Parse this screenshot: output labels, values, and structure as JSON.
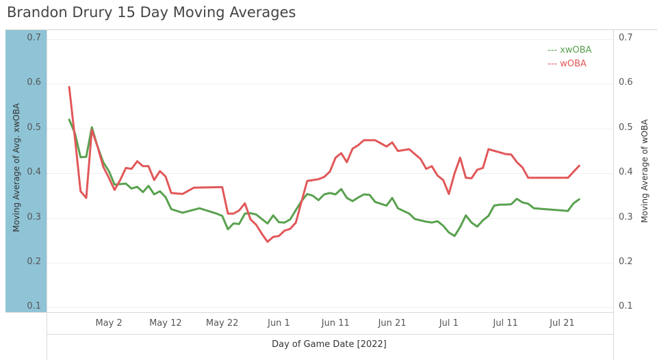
{
  "title": "Brandon Drury 15 Day Moving Averages",
  "chart_data": {
    "type": "line",
    "title": "Brandon Drury 15 Day Moving Averages",
    "xlabel": "Day of Game Date [2022]",
    "ylabel_left": "Moving Average of Avg. xwOBA",
    "ylabel_right": "Moving Average of wOBA",
    "ylim": [
      0.09,
      0.72
    ],
    "xlim": [
      "2022-04-21",
      "2022-07-30"
    ],
    "y_ticks": [
      "0.1",
      "0.2",
      "0.3",
      "0.4",
      "0.5",
      "0.6",
      "0.7"
    ],
    "x_ticks": [
      {
        "date": "2022-05-02",
        "label": "May 2"
      },
      {
        "date": "2022-05-12",
        "label": "May 12"
      },
      {
        "date": "2022-05-22",
        "label": "May 22"
      },
      {
        "date": "2022-06-01",
        "label": "Jun 1"
      },
      {
        "date": "2022-06-11",
        "label": "Jun 11"
      },
      {
        "date": "2022-06-21",
        "label": "Jun 21"
      },
      {
        "date": "2022-07-01",
        "label": "Jul 1"
      },
      {
        "date": "2022-07-11",
        "label": "Jul 11"
      },
      {
        "date": "2022-07-21",
        "label": "Jul 21"
      }
    ],
    "legend_position": "top-right",
    "grid": true,
    "series": [
      {
        "name": "xwOBA",
        "legend_label": "--- xwOBA",
        "color": "#59a14f",
        "points": [
          [
            "2022-04-25",
            0.52
          ],
          [
            "2022-04-26",
            0.49
          ],
          [
            "2022-04-27",
            0.436
          ],
          [
            "2022-04-28",
            0.437
          ],
          [
            "2022-04-29",
            0.503
          ],
          [
            "2022-04-30",
            0.46
          ],
          [
            "2022-05-01",
            0.425
          ],
          [
            "2022-05-02",
            0.405
          ],
          [
            "2022-05-03",
            0.375
          ],
          [
            "2022-05-04",
            0.376
          ],
          [
            "2022-05-05",
            0.377
          ],
          [
            "2022-05-06",
            0.366
          ],
          [
            "2022-05-07",
            0.37
          ],
          [
            "2022-05-08",
            0.358
          ],
          [
            "2022-05-09",
            0.372
          ],
          [
            "2022-05-10",
            0.353
          ],
          [
            "2022-05-11",
            0.36
          ],
          [
            "2022-05-12",
            0.347
          ],
          [
            "2022-05-13",
            0.32
          ],
          [
            "2022-05-15",
            0.312
          ],
          [
            "2022-05-18",
            0.322
          ],
          [
            "2022-05-21",
            0.31
          ],
          [
            "2022-05-22",
            0.305
          ],
          [
            "2022-05-23",
            0.275
          ],
          [
            "2022-05-24",
            0.288
          ],
          [
            "2022-05-25",
            0.287
          ],
          [
            "2022-05-26",
            0.31
          ],
          [
            "2022-05-27",
            0.311
          ],
          [
            "2022-05-28",
            0.308
          ],
          [
            "2022-05-29",
            0.298
          ],
          [
            "2022-05-30",
            0.288
          ],
          [
            "2022-05-31",
            0.306
          ],
          [
            "2022-06-01",
            0.291
          ],
          [
            "2022-06-02",
            0.29
          ],
          [
            "2022-06-03",
            0.297
          ],
          [
            "2022-06-04",
            0.318
          ],
          [
            "2022-06-05",
            0.338
          ],
          [
            "2022-06-06",
            0.354
          ],
          [
            "2022-06-07",
            0.35
          ],
          [
            "2022-06-08",
            0.34
          ],
          [
            "2022-06-09",
            0.353
          ],
          [
            "2022-06-10",
            0.356
          ],
          [
            "2022-06-11",
            0.353
          ],
          [
            "2022-06-12",
            0.365
          ],
          [
            "2022-06-13",
            0.345
          ],
          [
            "2022-06-14",
            0.338
          ],
          [
            "2022-06-15",
            0.346
          ],
          [
            "2022-06-16",
            0.353
          ],
          [
            "2022-06-17",
            0.352
          ],
          [
            "2022-06-18",
            0.336
          ],
          [
            "2022-06-20",
            0.328
          ],
          [
            "2022-06-21",
            0.345
          ],
          [
            "2022-06-22",
            0.322
          ],
          [
            "2022-06-24",
            0.31
          ],
          [
            "2022-06-25",
            0.298
          ],
          [
            "2022-06-27",
            0.292
          ],
          [
            "2022-06-28",
            0.29
          ],
          [
            "2022-06-29",
            0.293
          ],
          [
            "2022-06-30",
            0.283
          ],
          [
            "2022-07-01",
            0.268
          ],
          [
            "2022-07-02",
            0.26
          ],
          [
            "2022-07-03",
            0.28
          ],
          [
            "2022-07-04",
            0.306
          ],
          [
            "2022-07-05",
            0.29
          ],
          [
            "2022-07-06",
            0.281
          ],
          [
            "2022-07-07",
            0.295
          ],
          [
            "2022-07-08",
            0.305
          ],
          [
            "2022-07-09",
            0.328
          ],
          [
            "2022-07-10",
            0.33
          ],
          [
            "2022-07-11",
            0.33
          ],
          [
            "2022-07-12",
            0.331
          ],
          [
            "2022-07-13",
            0.343
          ],
          [
            "2022-07-14",
            0.335
          ],
          [
            "2022-07-15",
            0.332
          ],
          [
            "2022-07-16",
            0.322
          ],
          [
            "2022-07-18",
            0.32
          ],
          [
            "2022-07-21",
            0.317
          ],
          [
            "2022-07-22",
            0.316
          ],
          [
            "2022-07-23",
            0.333
          ],
          [
            "2022-07-24",
            0.342
          ]
        ]
      },
      {
        "name": "wOBA",
        "legend_label": "--- wOBA",
        "color": "#e15759",
        "points": [
          [
            "2022-04-25",
            0.593
          ],
          [
            "2022-04-26",
            0.48
          ],
          [
            "2022-04-27",
            0.36
          ],
          [
            "2022-04-28",
            0.345
          ],
          [
            "2022-04-29",
            0.497
          ],
          [
            "2022-04-30",
            0.46
          ],
          [
            "2022-05-01",
            0.415
          ],
          [
            "2022-05-02",
            0.39
          ],
          [
            "2022-05-03",
            0.363
          ],
          [
            "2022-05-04",
            0.385
          ],
          [
            "2022-05-05",
            0.412
          ],
          [
            "2022-05-06",
            0.41
          ],
          [
            "2022-05-07",
            0.427
          ],
          [
            "2022-05-08",
            0.416
          ],
          [
            "2022-05-09",
            0.416
          ],
          [
            "2022-05-10",
            0.385
          ],
          [
            "2022-05-11",
            0.405
          ],
          [
            "2022-05-12",
            0.393
          ],
          [
            "2022-05-13",
            0.356
          ],
          [
            "2022-05-15",
            0.354
          ],
          [
            "2022-05-17",
            0.368
          ],
          [
            "2022-05-21",
            0.369
          ],
          [
            "2022-05-22",
            0.369
          ],
          [
            "2022-05-23",
            0.31
          ],
          [
            "2022-05-24",
            0.31
          ],
          [
            "2022-05-25",
            0.317
          ],
          [
            "2022-05-26",
            0.333
          ],
          [
            "2022-05-27",
            0.297
          ],
          [
            "2022-05-28",
            0.285
          ],
          [
            "2022-05-29",
            0.265
          ],
          [
            "2022-05-30",
            0.247
          ],
          [
            "2022-05-31",
            0.258
          ],
          [
            "2022-06-01",
            0.26
          ],
          [
            "2022-06-02",
            0.272
          ],
          [
            "2022-06-03",
            0.276
          ],
          [
            "2022-06-04",
            0.29
          ],
          [
            "2022-06-05",
            0.337
          ],
          [
            "2022-06-06",
            0.383
          ],
          [
            "2022-06-07",
            0.385
          ],
          [
            "2022-06-08",
            0.387
          ],
          [
            "2022-06-09",
            0.392
          ],
          [
            "2022-06-10",
            0.404
          ],
          [
            "2022-06-11",
            0.435
          ],
          [
            "2022-06-12",
            0.445
          ],
          [
            "2022-06-13",
            0.425
          ],
          [
            "2022-06-14",
            0.455
          ],
          [
            "2022-06-15",
            0.463
          ],
          [
            "2022-06-16",
            0.474
          ],
          [
            "2022-06-17",
            0.474
          ],
          [
            "2022-06-18",
            0.474
          ],
          [
            "2022-06-20",
            0.46
          ],
          [
            "2022-06-21",
            0.469
          ],
          [
            "2022-06-22",
            0.45
          ],
          [
            "2022-06-24",
            0.454
          ],
          [
            "2022-06-26",
            0.432
          ],
          [
            "2022-06-27",
            0.41
          ],
          [
            "2022-06-28",
            0.416
          ],
          [
            "2022-06-29",
            0.395
          ],
          [
            "2022-06-30",
            0.385
          ],
          [
            "2022-07-01",
            0.354
          ],
          [
            "2022-07-02",
            0.4
          ],
          [
            "2022-07-03",
            0.435
          ],
          [
            "2022-07-04",
            0.39
          ],
          [
            "2022-07-05",
            0.389
          ],
          [
            "2022-07-06",
            0.408
          ],
          [
            "2022-07-07",
            0.412
          ],
          [
            "2022-07-08",
            0.454
          ],
          [
            "2022-07-11",
            0.443
          ],
          [
            "2022-07-12",
            0.442
          ],
          [
            "2022-07-13",
            0.425
          ],
          [
            "2022-07-14",
            0.413
          ],
          [
            "2022-07-15",
            0.39
          ],
          [
            "2022-07-18",
            0.39
          ],
          [
            "2022-07-21",
            0.39
          ],
          [
            "2022-07-22",
            0.39
          ],
          [
            "2022-07-24",
            0.417
          ]
        ]
      }
    ]
  }
}
